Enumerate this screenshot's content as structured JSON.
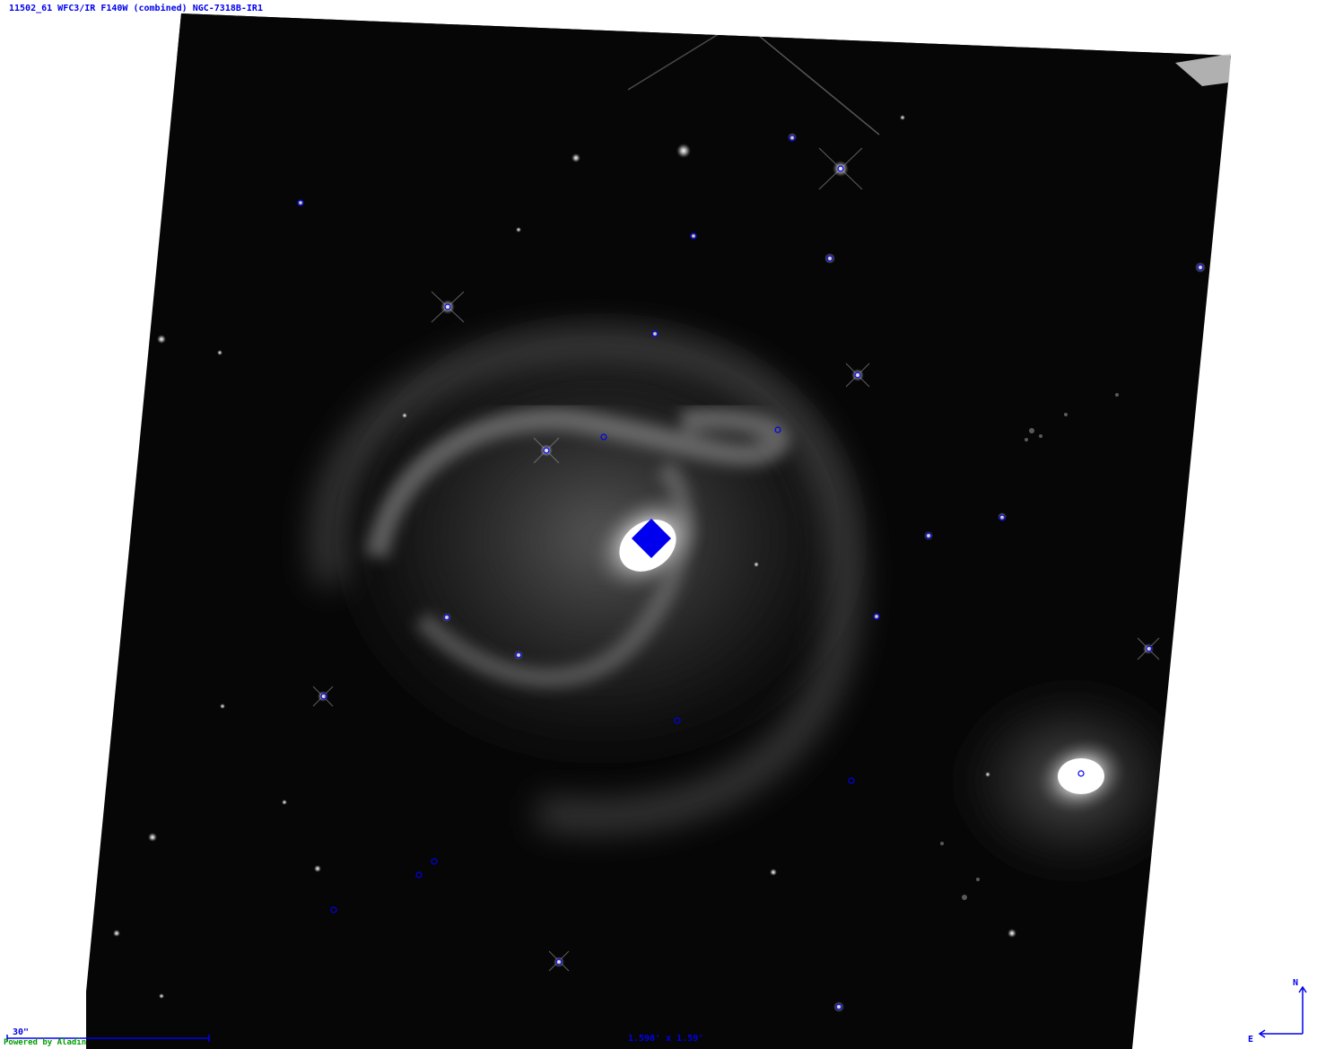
{
  "image": {
    "title": "11502_61 WFC3/IR F140W (combined) NGC-7318B-IR1",
    "scale_bar_label": "30\"",
    "credit": "Powered by Aladin",
    "field_of_view": "1.598' x 1.59'",
    "compass": {
      "north": "N",
      "east": "E"
    }
  },
  "colors": {
    "overlay": "#0000ee",
    "credit": "#00a000",
    "sky": "#060606",
    "background": "#ffffff"
  },
  "markers": {
    "count": 27,
    "shape": "circle",
    "pointing_marker": "diamond"
  }
}
